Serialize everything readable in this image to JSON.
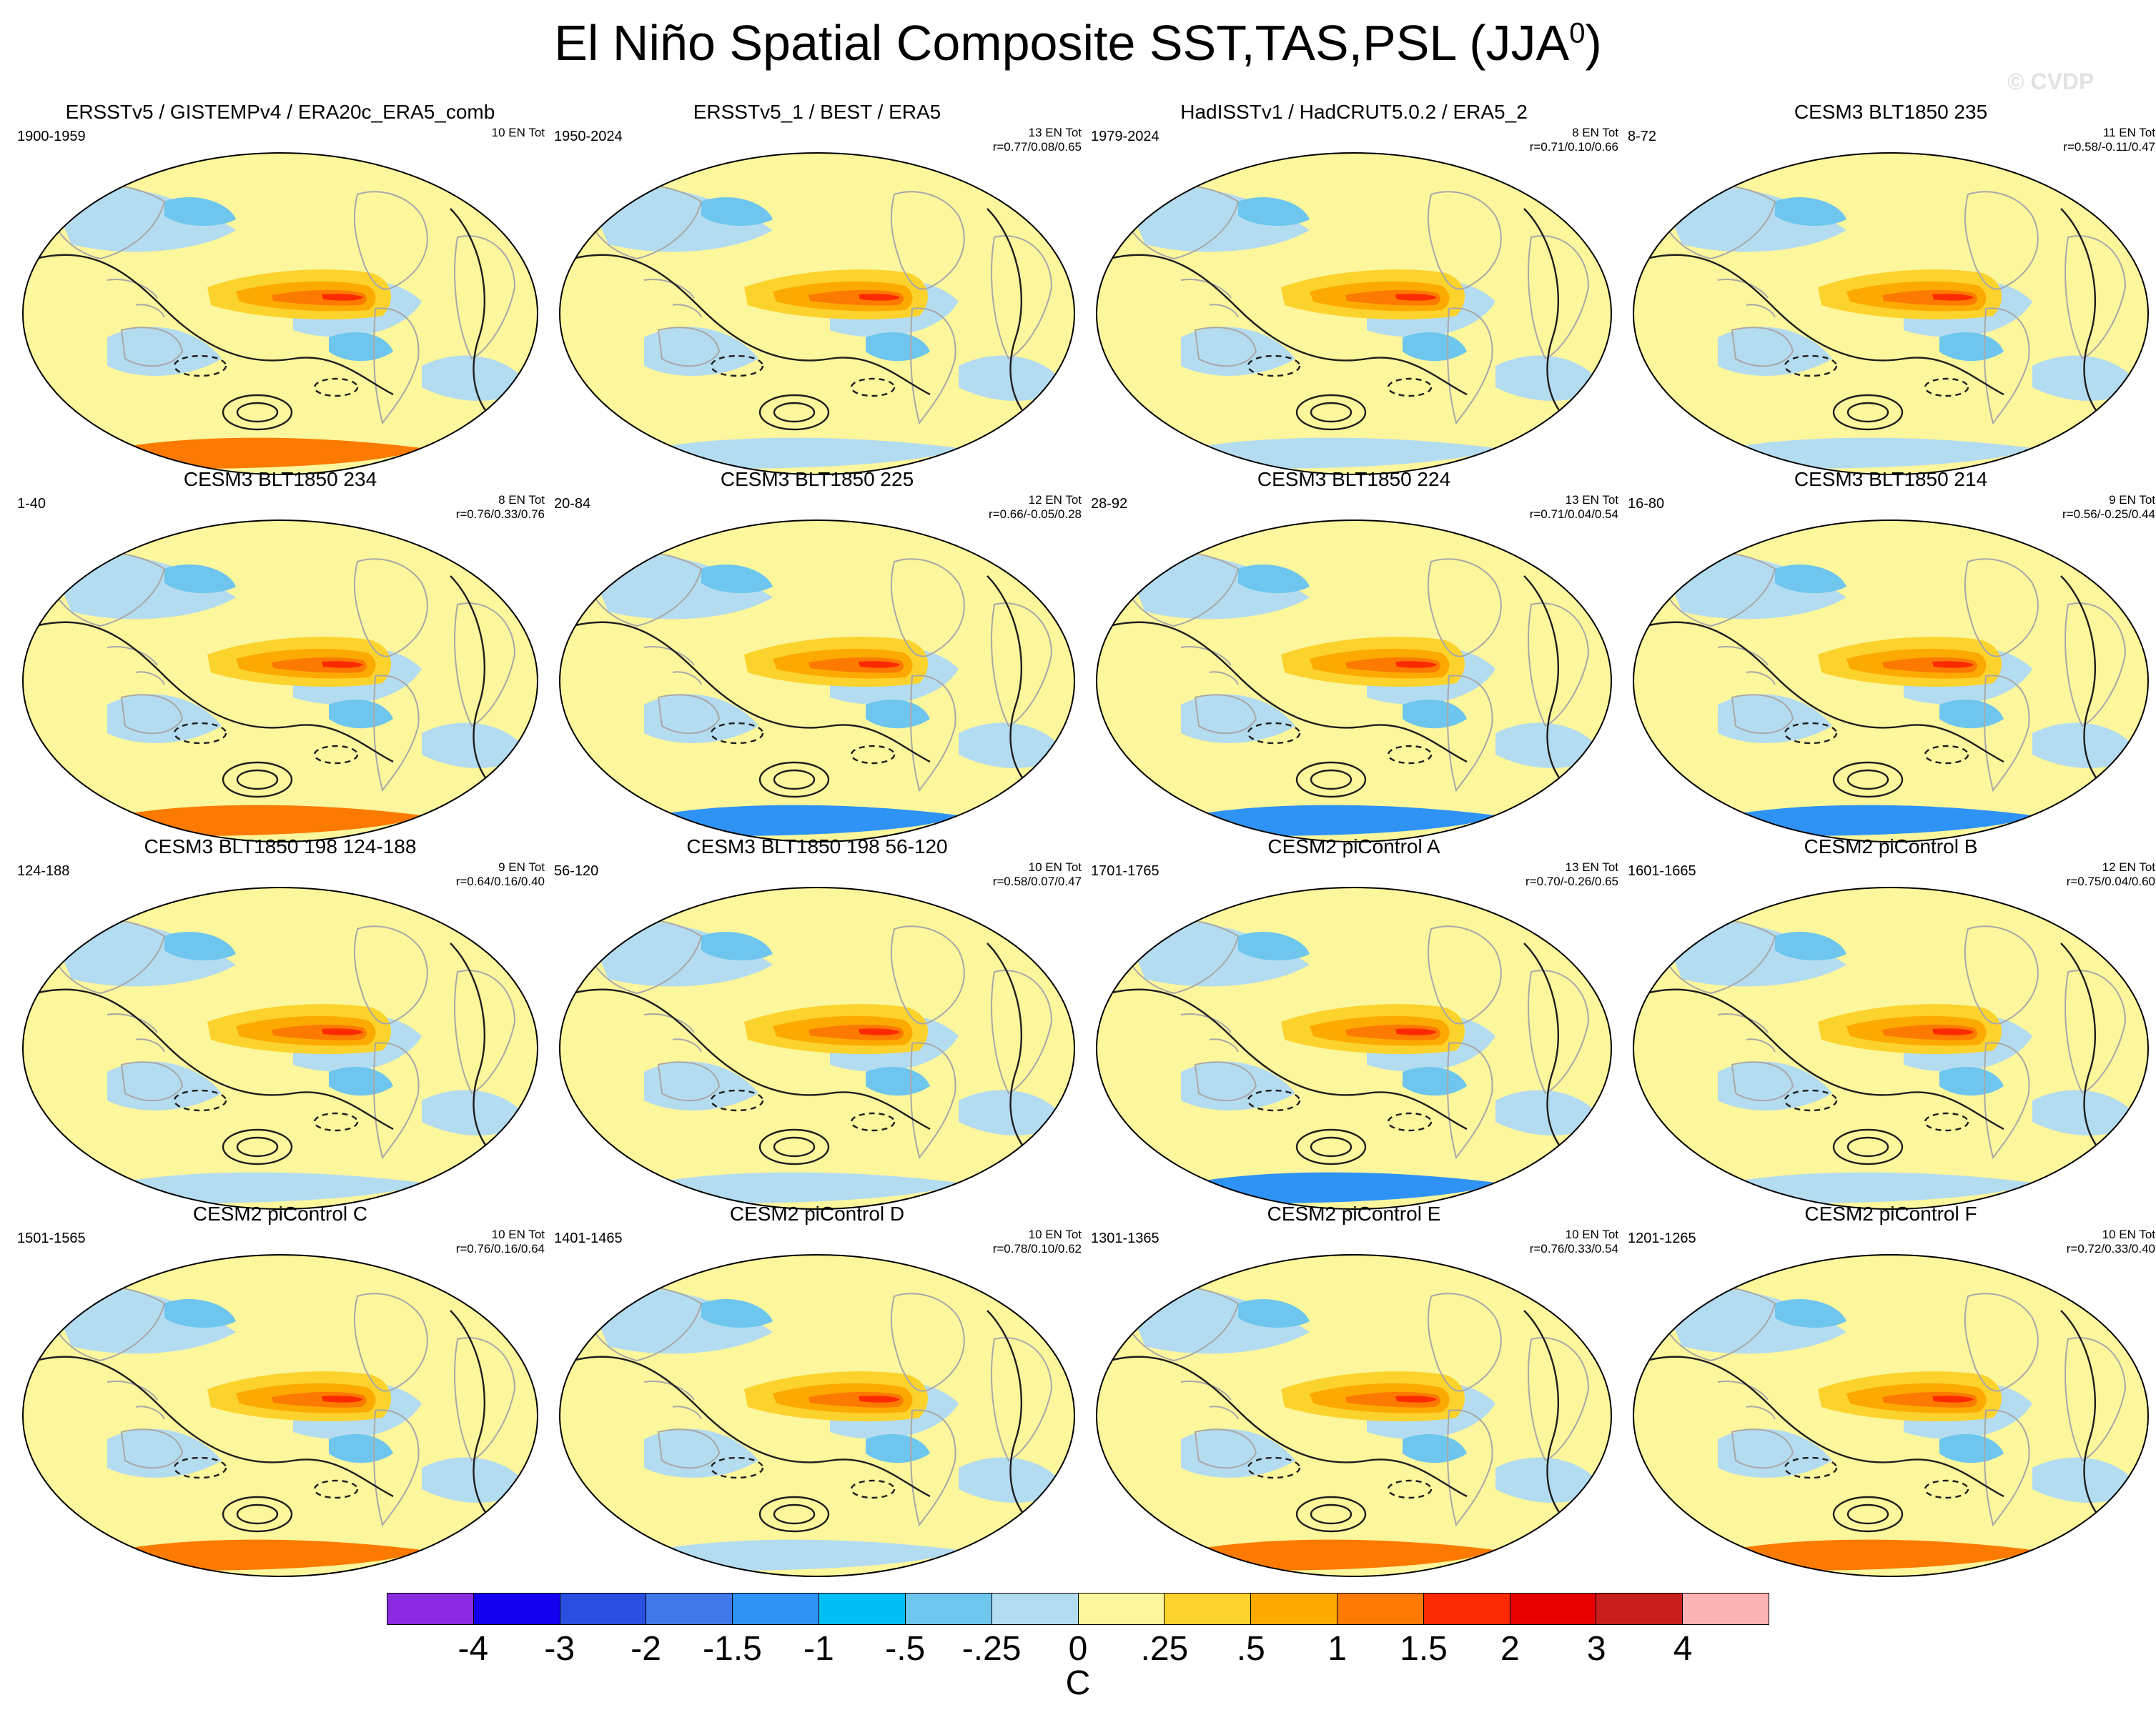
{
  "title": "El Niño Spatial Composite SST,TAS,PSL (JJA",
  "title_sup": "0",
  "title_close": ")",
  "watermark": "© CVDP",
  "panels": [
    {
      "title": "ERSSTv5 / GISTEMPv4 / ERA20c_ERA5_comb",
      "years": "1900-1959",
      "count": "10 EN Tot",
      "stats": "",
      "antarctic": "warm"
    },
    {
      "title": "ERSSTv5_1 / BEST / ERA5",
      "years": "1950-2024",
      "count": "13 EN Tot",
      "stats": "r=0.77/0.08/0.65",
      "antarctic": "neutral"
    },
    {
      "title": "HadISSTv1 / HadCRUT5.0.2 / ERA5_2",
      "years": "1979-2024",
      "count": "8 EN Tot",
      "stats": "r=0.71/0.10/0.66",
      "antarctic": "neutral"
    },
    {
      "title": "CESM3 BLT1850 235",
      "years": "8-72",
      "count": "11 EN Tot",
      "stats": "r=0.58/-0.11/0.47",
      "antarctic": "neutral"
    },
    {
      "title": "CESM3 BLT1850 234",
      "years": "1-40",
      "count": "8 EN Tot",
      "stats": "r=0.76/0.33/0.76",
      "antarctic": "warm"
    },
    {
      "title": "CESM3 BLT1850 225",
      "years": "20-84",
      "count": "12 EN Tot",
      "stats": "r=0.66/-0.05/0.28",
      "antarctic": "cool"
    },
    {
      "title": "CESM3 BLT1850 224",
      "years": "28-92",
      "count": "13 EN Tot",
      "stats": "r=0.71/0.04/0.54",
      "antarctic": "cool"
    },
    {
      "title": "CESM3 BLT1850 214",
      "years": "16-80",
      "count": "9 EN Tot",
      "stats": "r=0.56/-0.25/0.44",
      "antarctic": "cool"
    },
    {
      "title": "CESM3 BLT1850 198 124-188",
      "years": "124-188",
      "count": "9 EN Tot",
      "stats": "r=0.64/0.16/0.40",
      "antarctic": "neutral"
    },
    {
      "title": "CESM3 BLT1850 198 56-120",
      "years": "56-120",
      "count": "10 EN Tot",
      "stats": "r=0.58/0.07/0.47",
      "antarctic": "neutral"
    },
    {
      "title": "CESM2 piControl A",
      "years": "1701-1765",
      "count": "13 EN Tot",
      "stats": "r=0.70/-0.26/0.65",
      "antarctic": "cool"
    },
    {
      "title": "CESM2 piControl B",
      "years": "1601-1665",
      "count": "12 EN Tot",
      "stats": "r=0.75/0.04/0.60",
      "antarctic": "neutral"
    },
    {
      "title": "CESM2 piControl C",
      "years": "1501-1565",
      "count": "10 EN Tot",
      "stats": "r=0.76/0.16/0.64",
      "antarctic": "warm"
    },
    {
      "title": "CESM2 piControl D",
      "years": "1401-1465",
      "count": "10 EN Tot",
      "stats": "r=0.78/0.10/0.62",
      "antarctic": "neutral"
    },
    {
      "title": "CESM2 piControl E",
      "years": "1301-1365",
      "count": "10 EN Tot",
      "stats": "r=0.76/0.33/0.54",
      "antarctic": "warm"
    },
    {
      "title": "CESM2 piControl F",
      "years": "1201-1265",
      "count": "10 EN Tot",
      "stats": "r=0.72/0.33/0.40",
      "antarctic": "warm"
    }
  ],
  "colorbar": {
    "colors": [
      "#8a2be2",
      "#1400f0",
      "#2a4fe0",
      "#3f78e8",
      "#2e93f5",
      "#00bff5",
      "#6ec6ee",
      "#b4dcf0",
      "#fcf69c",
      "#fcd22c",
      "#fcaa00",
      "#fc7a00",
      "#fc2a00",
      "#e60000",
      "#c81e1e",
      "#fcb4b4"
    ],
    "labels": [
      "-4",
      "-3",
      "-2",
      "-1.5",
      "-1",
      "-.5",
      "-.25",
      "0",
      ".25",
      ".5",
      "1",
      "1.5",
      "2",
      "3",
      "4"
    ],
    "unit": "C"
  },
  "map_colors": {
    "ocean_bg": "#fcf69c",
    "cool_light": "#b4dcf0",
    "cool_mid": "#6ec6ee",
    "cool_deep": "#2e93f5",
    "warm_light": "#fcd22c",
    "warm_mid": "#fcaa00",
    "warm_high": "#fc7a00",
    "warm_peak": "#fc2a00",
    "contour": "#1e1e1e",
    "coast": "#a8a8a8"
  }
}
